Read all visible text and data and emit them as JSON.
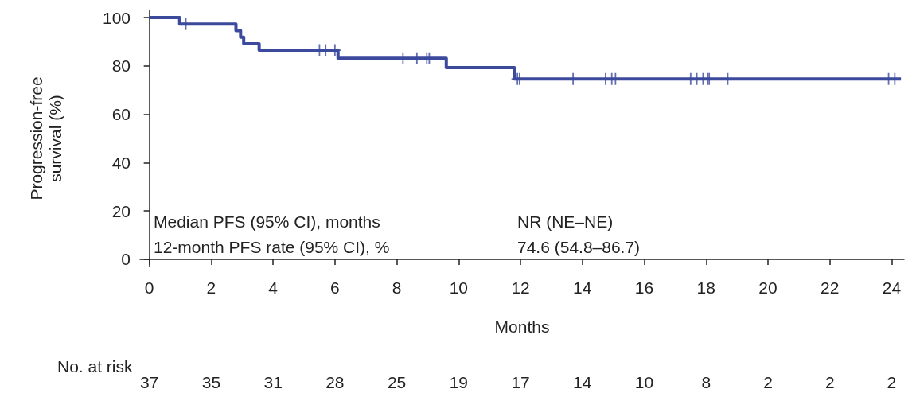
{
  "chart_data": {
    "type": "step",
    "xlabel": "Months",
    "ylabel": "Progression-free survival (%)",
    "xlim": [
      -0.3,
      24.4
    ],
    "xticks": [
      0,
      2,
      4,
      6,
      8,
      10,
      12,
      14,
      16,
      18,
      20,
      22,
      24
    ],
    "ylim": [
      -3,
      103
    ],
    "yticks": [
      0,
      20,
      40,
      60,
      80,
      100
    ],
    "grid": false,
    "line_style": "solid",
    "series": [
      {
        "color": "#3c4a9e",
        "marker": "none",
        "x": [
          0,
          0.98,
          2.8,
          2.95,
          3.05,
          3.55,
          6.1,
          9.6,
          11.8,
          24.3
        ],
        "values": [
          100,
          97.3,
          94.6,
          91.9,
          89.2,
          86.5,
          83.2,
          79.3,
          74.6,
          74.6
        ]
      },
      {
        "type": "scatter",
        "color": "#3c4a9e",
        "marker": "cross",
        "x": [
          1.18,
          5.5,
          5.7,
          6.0,
          8.2,
          8.65,
          8.97,
          9.05,
          11.9,
          11.97,
          13.7,
          14.75,
          14.95,
          15.07,
          17.5,
          17.7,
          17.9,
          18.05,
          18.1,
          18.7,
          23.9,
          24.1
        ],
        "values": [
          97.3,
          86.5,
          86.5,
          86.5,
          83.2,
          83.2,
          83.2,
          83.2,
          74.6,
          74.6,
          74.6,
          74.6,
          74.6,
          74.6,
          74.6,
          74.6,
          74.6,
          74.6,
          74.6,
          74.6,
          74.6,
          74.6
        ]
      }
    ],
    "annotations": [
      "Median PFS (95% CI), months",
      "NR (NE–NE)",
      "12-month PFS rate (95% CI), %",
      "74.6 (54.8–86.7)",
      "No. at risk",
      "37",
      "35",
      "31",
      "28",
      "25",
      "19",
      "17",
      "14",
      "10",
      "8",
      "2",
      "2",
      "2"
    ]
  }
}
